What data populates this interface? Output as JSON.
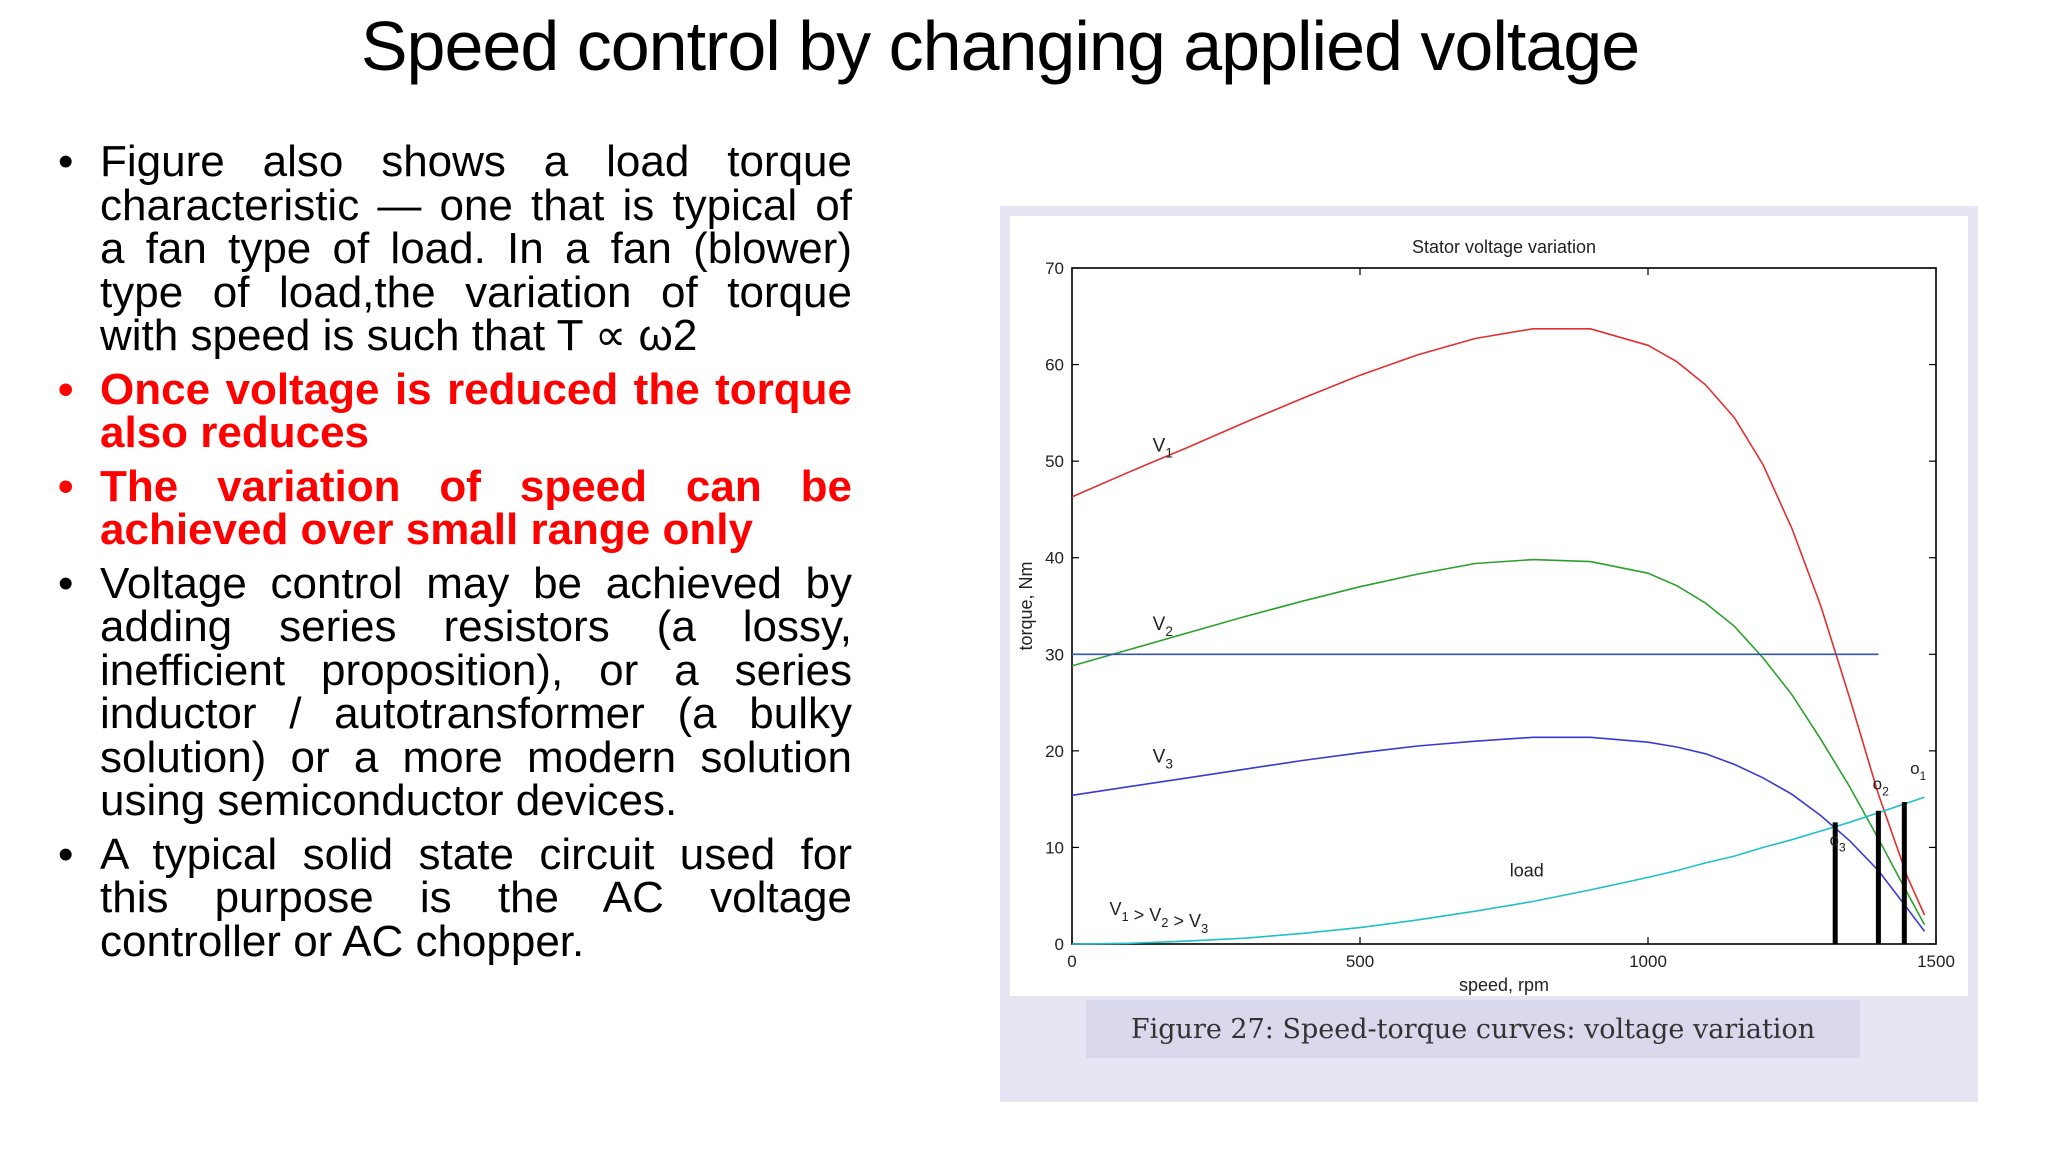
{
  "slide": {
    "title": "Speed control by changing applied voltage",
    "bullets": [
      {
        "text": "Figure  also shows a load torque characteristic — one that is typical of a fan type of load. In a fan (blower) type of load,the variation of torque with speed is such that T ∝ ω2",
        "emphasis": false
      },
      {
        "text": "Once voltage is reduced the torque also reduces",
        "emphasis": true
      },
      {
        "text": "The variation of speed can be achieved over small range only",
        "emphasis": true
      },
      {
        "text": "Voltage control may be achieved by adding series resistors (a lossy, inefficient proposition), or a series inductor / autotransformer (a bulky solution) or a more modern solution using semiconductor devices.",
        "emphasis": false
      },
      {
        "text": "A typical solid state circuit used for this purpose is the AC voltage controller or AC chopper.",
        "emphasis": false
      }
    ],
    "bullet_symbol": "•",
    "colors": {
      "emphasis": "#ff0000",
      "text": "#000000"
    }
  },
  "figure": {
    "caption": "Figure 27: Speed-torque curves: voltage variation"
  },
  "chart_data": {
    "type": "line",
    "title": "Stator voltage variation",
    "xlabel": "speed, rpm",
    "ylabel": "torque, Nm",
    "xlim": [
      0,
      1500
    ],
    "ylim": [
      0,
      70
    ],
    "xticks": [
      0,
      500,
      1000,
      1500
    ],
    "yticks": [
      0,
      10,
      20,
      30,
      40,
      50,
      60,
      70
    ],
    "grid": false,
    "x": [
      0,
      100,
      200,
      300,
      400,
      500,
      600,
      700,
      800,
      900,
      1000,
      1050,
      1100,
      1150,
      1200,
      1250,
      1300,
      1350,
      1400,
      1450,
      1480
    ],
    "series": [
      {
        "name": "V1",
        "color": "#e03030",
        "values": [
          46.3,
          48.9,
          51.4,
          54.0,
          56.5,
          58.9,
          61.0,
          62.7,
          63.7,
          63.7,
          62.0,
          60.3,
          57.9,
          54.5,
          49.6,
          43.0,
          35.0,
          25.5,
          15.5,
          7.0,
          3.0
        ]
      },
      {
        "name": "V2",
        "color": "#2ca02c",
        "values": [
          28.8,
          30.5,
          32.2,
          33.9,
          35.5,
          37.0,
          38.3,
          39.4,
          39.8,
          39.6,
          38.4,
          37.1,
          35.3,
          32.9,
          29.6,
          25.8,
          21.2,
          16.3,
          10.9,
          5.3,
          2.0
        ]
      },
      {
        "name": "V3",
        "color": "#3a3ad0",
        "values": [
          15.4,
          16.3,
          17.2,
          18.1,
          19.0,
          19.8,
          20.5,
          21.0,
          21.4,
          21.4,
          20.9,
          20.4,
          19.7,
          18.6,
          17.2,
          15.5,
          13.3,
          10.7,
          7.6,
          3.7,
          1.3
        ]
      },
      {
        "name": "load",
        "color": "#20c0c8",
        "values": [
          0,
          0.07,
          0.3,
          0.6,
          1.1,
          1.7,
          2.5,
          3.4,
          4.4,
          5.6,
          6.9,
          7.6,
          8.4,
          9.1,
          10.0,
          10.8,
          11.7,
          12.6,
          13.6,
          14.6,
          15.2
        ]
      },
      {
        "name": "",
        "color": "#3355aa",
        "x": [
          0,
          1400
        ],
        "values": [
          30,
          30
        ]
      }
    ],
    "curve_labels": [
      {
        "text": "V",
        "sub": "1",
        "x": 140,
        "y": 51
      },
      {
        "text": "V",
        "sub": "2",
        "x": 140,
        "y": 32.5
      },
      {
        "text": "V",
        "sub": "3",
        "x": 140,
        "y": 18.8
      }
    ],
    "load_label": {
      "text": "load",
      "x": 760,
      "y": 7
    },
    "relation_label": {
      "parts": [
        [
          "V",
          "1"
        ],
        [
          " > V",
          "2"
        ],
        [
          " > V",
          "3"
        ]
      ],
      "x": 65,
      "y": 3
    },
    "operating_points": [
      {
        "label": "o",
        "sub": "3",
        "x": 1325,
        "y": 12.6,
        "label_x": 1315,
        "label_y": 10.2
      },
      {
        "label": "o",
        "sub": "2",
        "x": 1400,
        "y": 13.8,
        "label_x": 1390,
        "label_y": 16.0
      },
      {
        "label": "o",
        "sub": "1",
        "x": 1445,
        "y": 14.7,
        "label_x": 1455,
        "label_y": 17.6
      }
    ]
  }
}
